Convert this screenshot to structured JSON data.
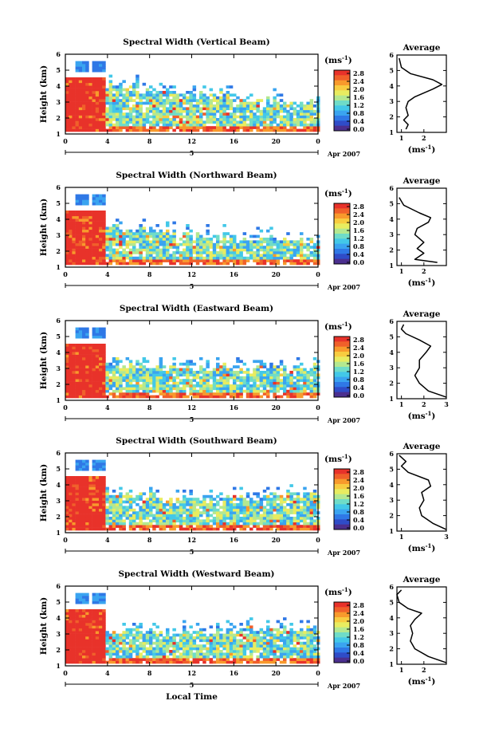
{
  "figure": {
    "xlabel": "Local Time"
  },
  "colorbar": {
    "colors": [
      "#4b2f8f",
      "#2f4cc8",
      "#2f78e6",
      "#3aa4f0",
      "#43c8e8",
      "#6fdcc8",
      "#b4e890",
      "#e8ec60",
      "#f8cc40",
      "#f89a2c",
      "#f0602a",
      "#e8322a"
    ],
    "tick_labels": [
      "0.0",
      "0.4",
      "0.8",
      "1.2",
      "1.6",
      "2.0",
      "2.4",
      "2.8"
    ],
    "unit": "(ms-1)"
  },
  "chart_data": [
    {
      "type": "heatmap",
      "title": "Spectral Width (Vertical Beam)",
      "ylabel": "Height (km)",
      "ylim": [
        1,
        6
      ],
      "yticks": [
        "1",
        "2",
        "3",
        "4",
        "5",
        "6"
      ],
      "xlim": [
        0,
        24
      ],
      "xticks": [
        "0",
        "4",
        "8",
        "12",
        "16",
        "20",
        "0"
      ],
      "date_labels": [
        "5",
        "Apr 2007"
      ],
      "colorbar_ticks": [
        "0.0",
        "0.4",
        "0.8",
        "1.2",
        "1.6",
        "2.0",
        "2.4",
        "2.8"
      ],
      "seed": 11,
      "top_km": [
        5.0,
        4.0,
        3.5,
        2.8
      ],
      "average_profile": {
        "title": "Average",
        "xticks": [
          "1",
          "2"
        ],
        "xlabel": "(ms-1)",
        "ylim": [
          1,
          6
        ],
        "points": [
          [
            1.2,
            1.2
          ],
          [
            1.3,
            1.5
          ],
          [
            1.1,
            1.8
          ],
          [
            1.3,
            2.1
          ],
          [
            1.2,
            2.6
          ],
          [
            1.3,
            3.0
          ],
          [
            1.6,
            3.3
          ],
          [
            2.4,
            3.8
          ],
          [
            2.8,
            4.1
          ],
          [
            2.4,
            4.4
          ],
          [
            1.4,
            4.8
          ],
          [
            1.0,
            5.2
          ],
          [
            0.9,
            5.8
          ]
        ]
      }
    },
    {
      "type": "heatmap",
      "title": "Spectral Width (Northward Beam)",
      "ylabel": "Height (km)",
      "ylim": [
        1,
        6
      ],
      "yticks": [
        "1",
        "2",
        "3",
        "4",
        "5",
        "6"
      ],
      "xlim": [
        0,
        24
      ],
      "xticks": [
        "0",
        "4",
        "8",
        "12",
        "16",
        "20",
        "0"
      ],
      "date_labels": [
        "5",
        "Apr 2007"
      ],
      "colorbar_ticks": [
        "0.0",
        "0.4",
        "0.8",
        "1.2",
        "1.6",
        "2.0",
        "2.4",
        "2.8"
      ],
      "seed": 23,
      "top_km": [
        4.6,
        3.5,
        3.0,
        2.6
      ],
      "average_profile": {
        "title": "Average",
        "xticks": [
          "1",
          "2"
        ],
        "xlabel": "(ms-1)",
        "ylim": [
          1,
          6
        ],
        "points": [
          [
            2.6,
            1.2
          ],
          [
            1.6,
            1.4
          ],
          [
            2.0,
            1.8
          ],
          [
            1.7,
            2.1
          ],
          [
            2.0,
            2.5
          ],
          [
            1.6,
            3.0
          ],
          [
            1.7,
            3.4
          ],
          [
            2.2,
            3.8
          ],
          [
            2.3,
            4.1
          ],
          [
            1.8,
            4.4
          ],
          [
            1.1,
            4.9
          ],
          [
            0.9,
            5.4
          ]
        ]
      }
    },
    {
      "type": "heatmap",
      "title": "Spectral Width (Eastward Beam)",
      "ylabel": "Height (km)",
      "ylim": [
        1,
        6
      ],
      "yticks": [
        "1",
        "2",
        "3",
        "4",
        "5",
        "6"
      ],
      "xlim": [
        0,
        24
      ],
      "xticks": [
        "0",
        "4",
        "8",
        "12",
        "16",
        "20",
        "0"
      ],
      "date_labels": [
        "5",
        "Apr 2007"
      ],
      "colorbar_ticks": [
        "0.0",
        "0.4",
        "0.8",
        "1.2",
        "1.6",
        "2.0",
        "2.4",
        "2.8"
      ],
      "seed": 37,
      "top_km": [
        4.6,
        3.4,
        3.0,
        3.0
      ],
      "average_profile": {
        "title": "Average",
        "xticks": [
          "1",
          "2",
          "3"
        ],
        "xlabel": "(ms-1)",
        "ylim": [
          1,
          6
        ],
        "points": [
          [
            3.0,
            1.1
          ],
          [
            2.2,
            1.5
          ],
          [
            1.8,
            2.0
          ],
          [
            1.6,
            2.5
          ],
          [
            1.8,
            3.0
          ],
          [
            1.8,
            3.5
          ],
          [
            2.1,
            4.0
          ],
          [
            2.3,
            4.4
          ],
          [
            1.8,
            4.8
          ],
          [
            1.2,
            5.2
          ],
          [
            1.0,
            5.5
          ],
          [
            1.1,
            5.8
          ]
        ]
      }
    },
    {
      "type": "heatmap",
      "title": "Spectral Width (Southward Beam)",
      "ylabel": "Height (km)",
      "ylim": [
        1,
        6
      ],
      "yticks": [
        "1",
        "2",
        "3",
        "4",
        "5",
        "6"
      ],
      "xlim": [
        0,
        24
      ],
      "xticks": [
        "0",
        "4",
        "8",
        "12",
        "16",
        "20",
        "0"
      ],
      "date_labels": [
        "5",
        "Apr 2007"
      ],
      "colorbar_ticks": [
        "0.0",
        "0.4",
        "0.8",
        "1.2",
        "1.6",
        "2.0",
        "2.4",
        "2.8"
      ],
      "seed": 41,
      "top_km": [
        4.6,
        3.5,
        3.0,
        3.3
      ],
      "average_profile": {
        "title": "Average",
        "xticks": [
          "1",
          "3"
        ],
        "xlabel": "(ms-1)",
        "ylim": [
          1,
          6
        ],
        "points": [
          [
            3.0,
            1.1
          ],
          [
            2.4,
            1.5
          ],
          [
            1.9,
            2.0
          ],
          [
            1.8,
            2.5
          ],
          [
            2.0,
            3.0
          ],
          [
            1.9,
            3.5
          ],
          [
            2.3,
            3.9
          ],
          [
            2.2,
            4.3
          ],
          [
            1.3,
            4.8
          ],
          [
            1.0,
            5.2
          ],
          [
            1.2,
            5.5
          ],
          [
            0.9,
            5.9
          ]
        ]
      }
    },
    {
      "type": "heatmap",
      "title": "Spectral Width (Westward Beam)",
      "ylabel": "Height (km)",
      "ylim": [
        1,
        6
      ],
      "yticks": [
        "1",
        "2",
        "3",
        "4",
        "5",
        "6"
      ],
      "xlim": [
        0,
        24
      ],
      "xticks": [
        "0",
        "4",
        "8",
        "12",
        "16",
        "20",
        "0"
      ],
      "date_labels": [
        "5",
        "Apr 2007"
      ],
      "colorbar_ticks": [
        "0.0",
        "0.4",
        "0.8",
        "1.2",
        "1.6",
        "2.0",
        "2.4",
        "2.8"
      ],
      "seed": 53,
      "top_km": [
        4.6,
        3.3,
        3.0,
        3.4
      ],
      "average_profile": {
        "title": "Average",
        "xticks": [
          "1",
          "2"
        ],
        "xlabel": "(ms-1)",
        "ylim": [
          1,
          6
        ],
        "points": [
          [
            3.0,
            1.1
          ],
          [
            2.2,
            1.5
          ],
          [
            1.6,
            2.0
          ],
          [
            1.4,
            2.5
          ],
          [
            1.5,
            3.0
          ],
          [
            1.4,
            3.5
          ],
          [
            1.6,
            3.9
          ],
          [
            1.9,
            4.3
          ],
          [
            1.3,
            4.6
          ],
          [
            0.9,
            5.0
          ],
          [
            0.8,
            5.5
          ],
          [
            1.0,
            5.8
          ]
        ]
      }
    }
  ]
}
